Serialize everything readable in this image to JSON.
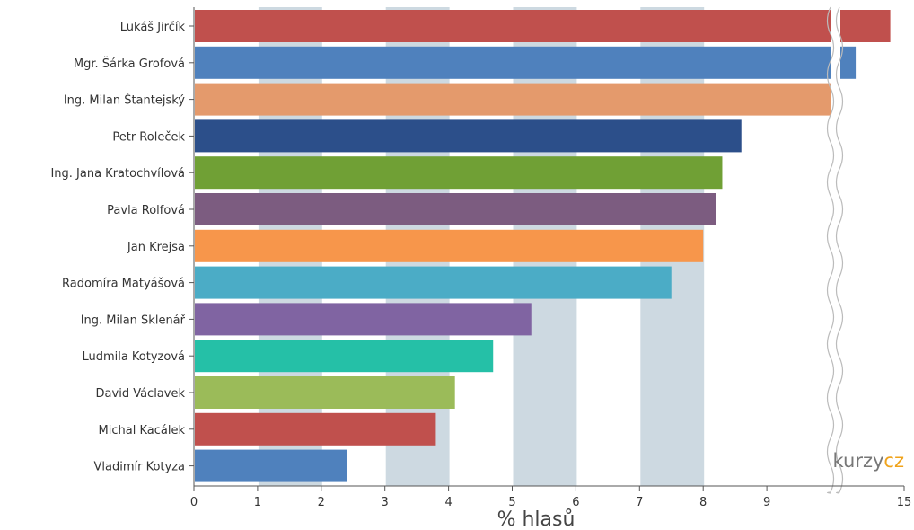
{
  "chart_data": {
    "type": "bar",
    "orientation": "horizontal",
    "categories": [
      "Lukáš Jirčík",
      "Mgr. Šárka Grofová",
      "Ing. Milan Štantejský",
      "Petr Roleček",
      "Ing. Jana Kratochvílová",
      "Pavla Rolfová",
      "Jan Krejsa",
      "Radomíra Matyášová",
      "Ing. Milan Sklenář",
      "Ludmila Kotyzová",
      "David Václavek",
      "Michal Kacálek",
      "Vladimír Kotyza"
    ],
    "values": [
      14.8,
      14.3,
      9.6,
      8.6,
      8.3,
      8.2,
      8.0,
      7.5,
      5.3,
      4.7,
      4.1,
      3.8,
      2.4
    ],
    "colors": [
      "#c0504d",
      "#4f81bd",
      "#e49a6c",
      "#2c4f8a",
      "#70a035",
      "#7c5c80",
      "#f7964b",
      "#4bacc6",
      "#8064a2",
      "#25c0a7",
      "#9bbb59",
      "#c0504d",
      "#4f81bd"
    ],
    "xlabel": "% hlasů",
    "xticks": [
      "0",
      "1",
      "2",
      "3",
      "4",
      "5",
      "6",
      "7",
      "8",
      "9",
      "15"
    ],
    "xlim": [
      0,
      15
    ],
    "axis_break": [
      9,
      14
    ],
    "grid": "alternating vertical bands",
    "band_color": "#cdd9e1"
  },
  "brand": {
    "part1": "kurzy",
    "part2": "cz",
    "color1": "#777777",
    "color2": "#f0a31b"
  }
}
